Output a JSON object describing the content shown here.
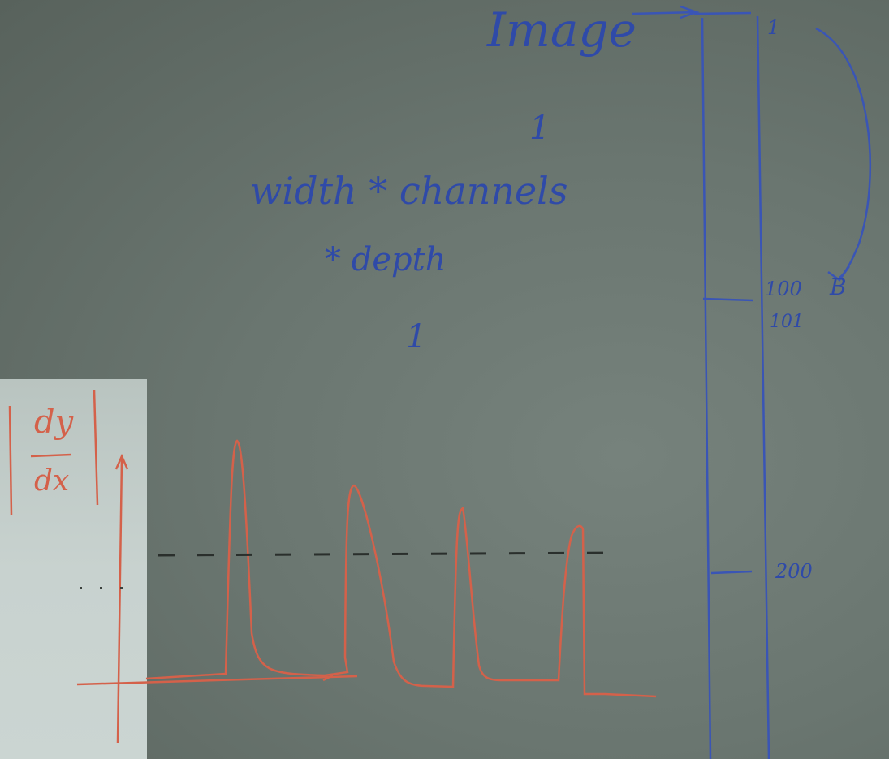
{
  "board": {
    "image_label": "Image",
    "one_top": "1",
    "expression_line1": "width * channels",
    "expression_line2": "* depth",
    "one_bottom": "1"
  },
  "scale": {
    "label_1": "1",
    "label_100": "100",
    "label_101": "101",
    "label_200": "200",
    "label_end": "B"
  },
  "plot": {
    "ylabel_top": "dy",
    "ylabel_bottom": "dx"
  },
  "colors": {
    "marker_blue": "#2f4aa8",
    "marker_red": "#d4614a",
    "marker_black": "#2a2f2c"
  }
}
